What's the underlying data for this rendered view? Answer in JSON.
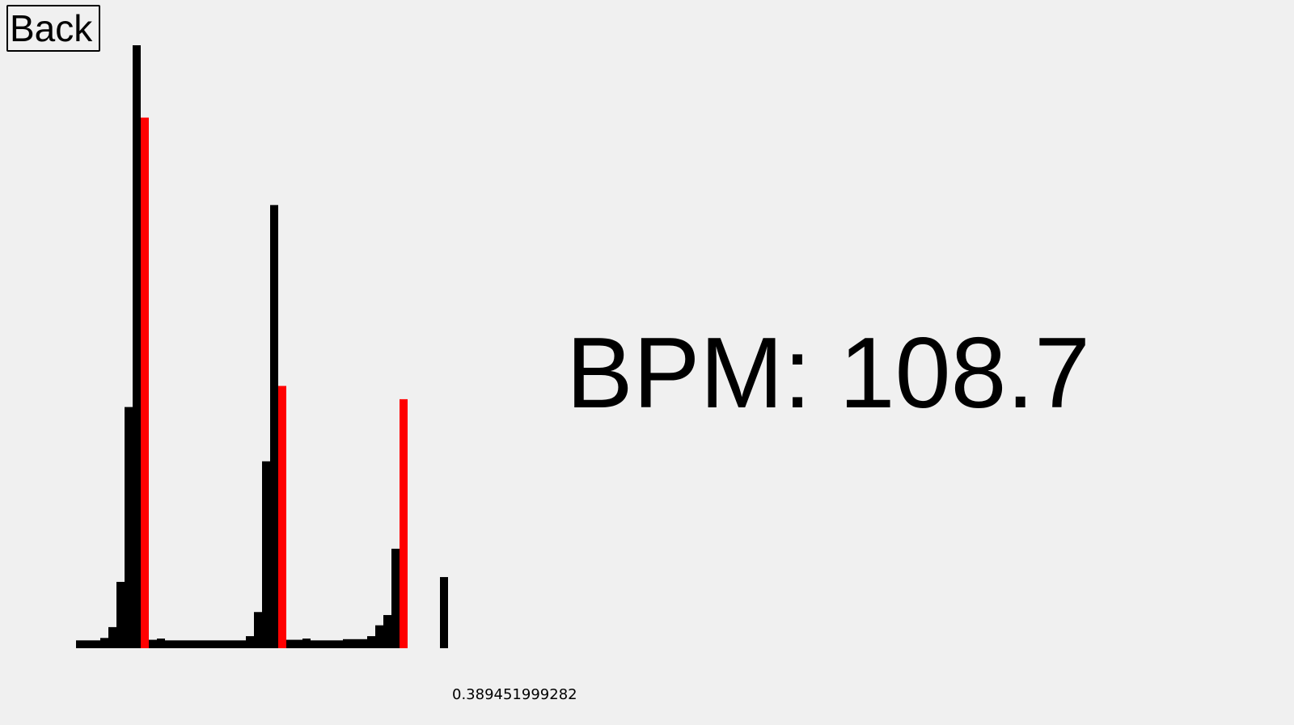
{
  "back_button": {
    "label": "Back"
  },
  "bpm_display": {
    "text": "BPM: 108.7"
  },
  "value_readout": {
    "text": "0.389451999282"
  },
  "colors": {
    "background": "#f0f0f0",
    "bar": "#000000",
    "peak": "#ff0000"
  },
  "chart_data": {
    "type": "bar",
    "title": "",
    "xlabel": "",
    "ylabel": "",
    "ylim": [
      0,
      100
    ],
    "grid": false,
    "legend": "none",
    "series": [
      {
        "color": "#000000",
        "values": [
          1.3,
          1.3,
          1.3,
          1.7,
          3.5,
          11,
          40,
          100,
          0,
          1.4,
          1.6,
          1.3,
          1.3,
          1.3,
          1.3,
          1.3,
          1.3,
          1.3,
          1.3,
          1.3,
          1.3,
          2,
          6,
          31,
          73.5,
          0,
          1.4,
          1.4,
          1.6,
          1.3,
          1.3,
          1.3,
          1.3,
          1.5,
          1.5,
          1.5,
          2,
          3.8,
          5.5,
          16.5,
          0,
          0,
          0,
          0,
          0,
          11.8
        ]
      },
      {
        "color": "#ff0000",
        "values": [
          0,
          0,
          0,
          0,
          0,
          0,
          0,
          0,
          88,
          0,
          0,
          0,
          0,
          0,
          0,
          0,
          0,
          0,
          0,
          0,
          0,
          0,
          0,
          0,
          0,
          43.5,
          0,
          0,
          0,
          0,
          0,
          0,
          0,
          0,
          0,
          0,
          0,
          0,
          0,
          0,
          41.3,
          0,
          0,
          0,
          0,
          0
        ]
      }
    ]
  }
}
